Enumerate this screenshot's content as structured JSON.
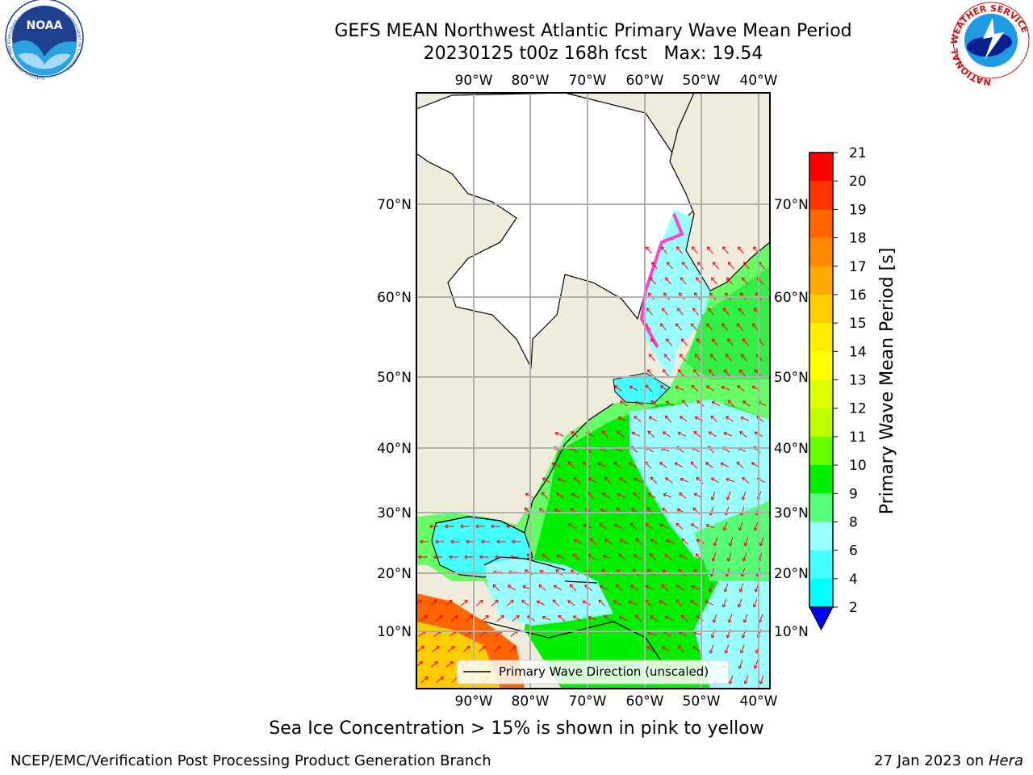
{
  "title": {
    "line1": "GEFS MEAN Northwest Atlantic Primary Wave Mean Period",
    "line2": "20230125 t00z 168h fcst   Max: 19.54"
  },
  "logos": {
    "left": {
      "name": "noaa-logo",
      "text": "NOAA",
      "ring_text": "NATIONAL OCEANIC AND ATMOSPHERIC ADMINISTRATION · U.S. DEPARTMENT OF COMMERCE"
    },
    "right": {
      "name": "nws-logo",
      "ring_text": "NATIONAL WEATHER SERVICE"
    }
  },
  "map": {
    "lon_labels": [
      "90°W",
      "80°W",
      "70°W",
      "60°W",
      "50°W",
      "40°W"
    ],
    "lat_labels": [
      "70°N",
      "60°N",
      "50°N",
      "40°N",
      "30°N",
      "20°N",
      "10°N"
    ],
    "legend_entry": "Primary Wave Direction (unscaled)",
    "arrow_color": "#ff0000",
    "land_color": "#efecdc",
    "ice_color": "#ffffff"
  },
  "colorbar": {
    "label": "Primary Wave Mean Period [s]",
    "ticks": [
      "21",
      "20",
      "19",
      "18",
      "17",
      "16",
      "15",
      "14",
      "13",
      "12",
      "11",
      "10",
      "9",
      "8",
      "6",
      "4",
      "2"
    ],
    "colors": [
      "#ff0000",
      "#ff3300",
      "#ff6600",
      "#ff8800",
      "#ffaa00",
      "#ffcc00",
      "#ffee00",
      "#ffff00",
      "#ddff00",
      "#bbff00",
      "#66ff00",
      "#00ee00",
      "#55ff77",
      "#99ffff",
      "#44ffff",
      "#00ffff",
      "#0099ff",
      "#0055ff"
    ],
    "extend_color": "#0000ff"
  },
  "note": "Sea Ice Concentration > 15% is shown in pink to yellow",
  "credit": {
    "left": "NCEP/EMC/Verification Post Processing Product Generation Branch",
    "right_prefix": "27 Jan 2023 on ",
    "right_host": "Hera"
  }
}
